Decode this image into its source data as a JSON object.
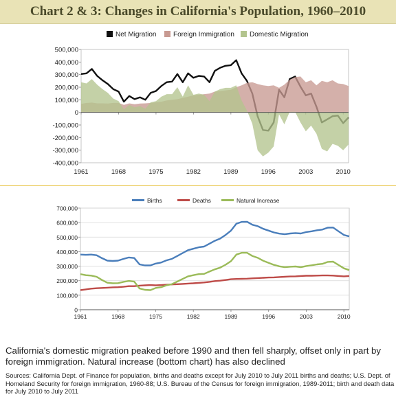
{
  "title": "Chart 2 & 3: Changes in California's Population, 1960–2010",
  "caption": "California's domestic migration peaked before 1990 and then fell sharply, offset only in part by foreign immigration. Natural increase (bottom chart) has also declined",
  "sources": "Sources: California Dept. of Finance for population, births and deaths except for July 2010 to July 2011 births and deaths; U.S. Dept. of Homeland Security for foreign immigration, 1960-88; U.S. Bureau of the Census for foreign immigration, 1989-2011; birth and death data for July 2010 to July 2011",
  "chart_data": [
    {
      "type": "area",
      "legend_position": "top",
      "ylim": [
        -400000,
        500000
      ],
      "y_ticks": [
        "500,000",
        "400,000",
        "300,000",
        "200,000",
        "100,000",
        "0",
        "-100,000",
        "-200,000",
        "-300,000",
        "-400,000"
      ],
      "x_ticks": [
        "1961",
        "1968",
        "1975",
        "1982",
        "1989",
        "1996",
        "2003",
        "2010"
      ],
      "x": [
        1961,
        1962,
        1963,
        1964,
        1965,
        1966,
        1967,
        1968,
        1969,
        1970,
        1971,
        1972,
        1973,
        1974,
        1975,
        1976,
        1977,
        1978,
        1979,
        1980,
        1981,
        1982,
        1983,
        1984,
        1985,
        1986,
        1987,
        1988,
        1989,
        1990,
        1991,
        1992,
        1993,
        1994,
        1995,
        1996,
        1997,
        1998,
        1999,
        2000,
        2001,
        2002,
        2003,
        2004,
        2005,
        2006,
        2007,
        2008,
        2009,
        2010,
        2011
      ],
      "series": [
        {
          "name": "Net Migration",
          "color": "#111111",
          "kind": "line",
          "values": [
            305000,
            310000,
            345000,
            290000,
            255000,
            225000,
            185000,
            165000,
            85000,
            130000,
            105000,
            120000,
            100000,
            155000,
            170000,
            210000,
            240000,
            245000,
            305000,
            240000,
            310000,
            275000,
            290000,
            285000,
            240000,
            330000,
            355000,
            370000,
            375000,
            415000,
            310000,
            250000,
            150000,
            -30000,
            -140000,
            -145000,
            -80000,
            180000,
            120000,
            265000,
            285000,
            205000,
            135000,
            150000,
            45000,
            -80000,
            -55000,
            -30000,
            -25000,
            -85000,
            -40000
          ]
        },
        {
          "name": "Foreign Immigration",
          "color": "#c89a92",
          "kind": "area",
          "values": [
            68000,
            75000,
            78000,
            72000,
            72000,
            70000,
            75000,
            75000,
            60000,
            72000,
            65000,
            70000,
            72000,
            75000,
            80000,
            85000,
            95000,
            100000,
            105000,
            115000,
            125000,
            135000,
            140000,
            145000,
            150000,
            165000,
            170000,
            175000,
            180000,
            200000,
            215000,
            235000,
            240000,
            225000,
            215000,
            210000,
            215000,
            195000,
            220000,
            260000,
            280000,
            285000,
            240000,
            255000,
            215000,
            250000,
            240000,
            255000,
            230000,
            225000,
            210000
          ]
        },
        {
          "name": "Domestic Migration",
          "color": "#b3c48e",
          "kind": "area",
          "values": [
            240000,
            230000,
            265000,
            220000,
            185000,
            155000,
            110000,
            90000,
            25000,
            60000,
            40000,
            50000,
            30000,
            80000,
            90000,
            125000,
            145000,
            145000,
            200000,
            125000,
            215000,
            140000,
            150000,
            140000,
            90000,
            165000,
            185000,
            195000,
            195000,
            215000,
            95000,
            15000,
            -90000,
            -300000,
            -350000,
            -320000,
            -270000,
            -15000,
            -95000,
            5000,
            5000,
            -80000,
            -150000,
            -105000,
            -170000,
            -290000,
            -310000,
            -250000,
            -265000,
            -300000,
            -255000
          ]
        }
      ]
    },
    {
      "type": "line",
      "legend_position": "top",
      "ylim": [
        0,
        700000
      ],
      "y_ticks": [
        "700,000",
        "600,000",
        "500,000",
        "400,000",
        "300,000",
        "200,000",
        "100,000",
        "0"
      ],
      "x_ticks": [
        "1961",
        "1968",
        "1975",
        "1982",
        "1989",
        "1996",
        "2003",
        "2010"
      ],
      "x": [
        1961,
        1962,
        1963,
        1964,
        1965,
        1966,
        1967,
        1968,
        1969,
        1970,
        1971,
        1972,
        1973,
        1974,
        1975,
        1976,
        1977,
        1978,
        1979,
        1980,
        1981,
        1982,
        1983,
        1984,
        1985,
        1986,
        1987,
        1988,
        1989,
        1990,
        1991,
        1992,
        1993,
        1994,
        1995,
        1996,
        1997,
        1998,
        1999,
        2000,
        2001,
        2002,
        2003,
        2004,
        2005,
        2006,
        2007,
        2008,
        2009,
        2010,
        2011
      ],
      "series": [
        {
          "name": "Births",
          "color": "#4a7ebb",
          "values": [
            380000,
            378000,
            380000,
            375000,
            355000,
            338000,
            336000,
            338000,
            350000,
            360000,
            356000,
            312000,
            305000,
            305000,
            318000,
            325000,
            340000,
            350000,
            370000,
            390000,
            410000,
            420000,
            430000,
            435000,
            455000,
            475000,
            490000,
            515000,
            545000,
            592000,
            605000,
            606000,
            585000,
            575000,
            557000,
            545000,
            532000,
            524000,
            520000,
            525000,
            528000,
            525000,
            535000,
            540000,
            547000,
            552000,
            565000,
            566000,
            540000,
            515000,
            505000
          ]
        },
        {
          "name": "Deaths",
          "color": "#be4b48",
          "values": [
            135000,
            140000,
            145000,
            148000,
            150000,
            152000,
            154000,
            155000,
            158000,
            162000,
            162000,
            166000,
            168000,
            170000,
            168000,
            170000,
            172000,
            174000,
            176000,
            178000,
            180000,
            182000,
            185000,
            188000,
            192000,
            197000,
            200000,
            205000,
            210000,
            212000,
            213000,
            214000,
            216000,
            218000,
            220000,
            222000,
            223000,
            225000,
            227000,
            229000,
            230000,
            232000,
            234000,
            234000,
            235000,
            236000,
            236000,
            235000,
            232000,
            230000,
            232000
          ]
        },
        {
          "name": "Natural Increase",
          "color": "#9bbb59",
          "values": [
            245000,
            238000,
            235000,
            227000,
            205000,
            186000,
            182000,
            183000,
            192000,
            198000,
            194000,
            146000,
            137000,
            135000,
            150000,
            155000,
            168000,
            176000,
            194000,
            212000,
            230000,
            238000,
            245000,
            247000,
            263000,
            278000,
            290000,
            310000,
            335000,
            380000,
            392000,
            392000,
            370000,
            357000,
            337000,
            323000,
            309000,
            299000,
            293000,
            296000,
            298000,
            293000,
            301000,
            306000,
            312000,
            316000,
            329000,
            331000,
            308000,
            285000,
            273000
          ]
        }
      ]
    }
  ]
}
